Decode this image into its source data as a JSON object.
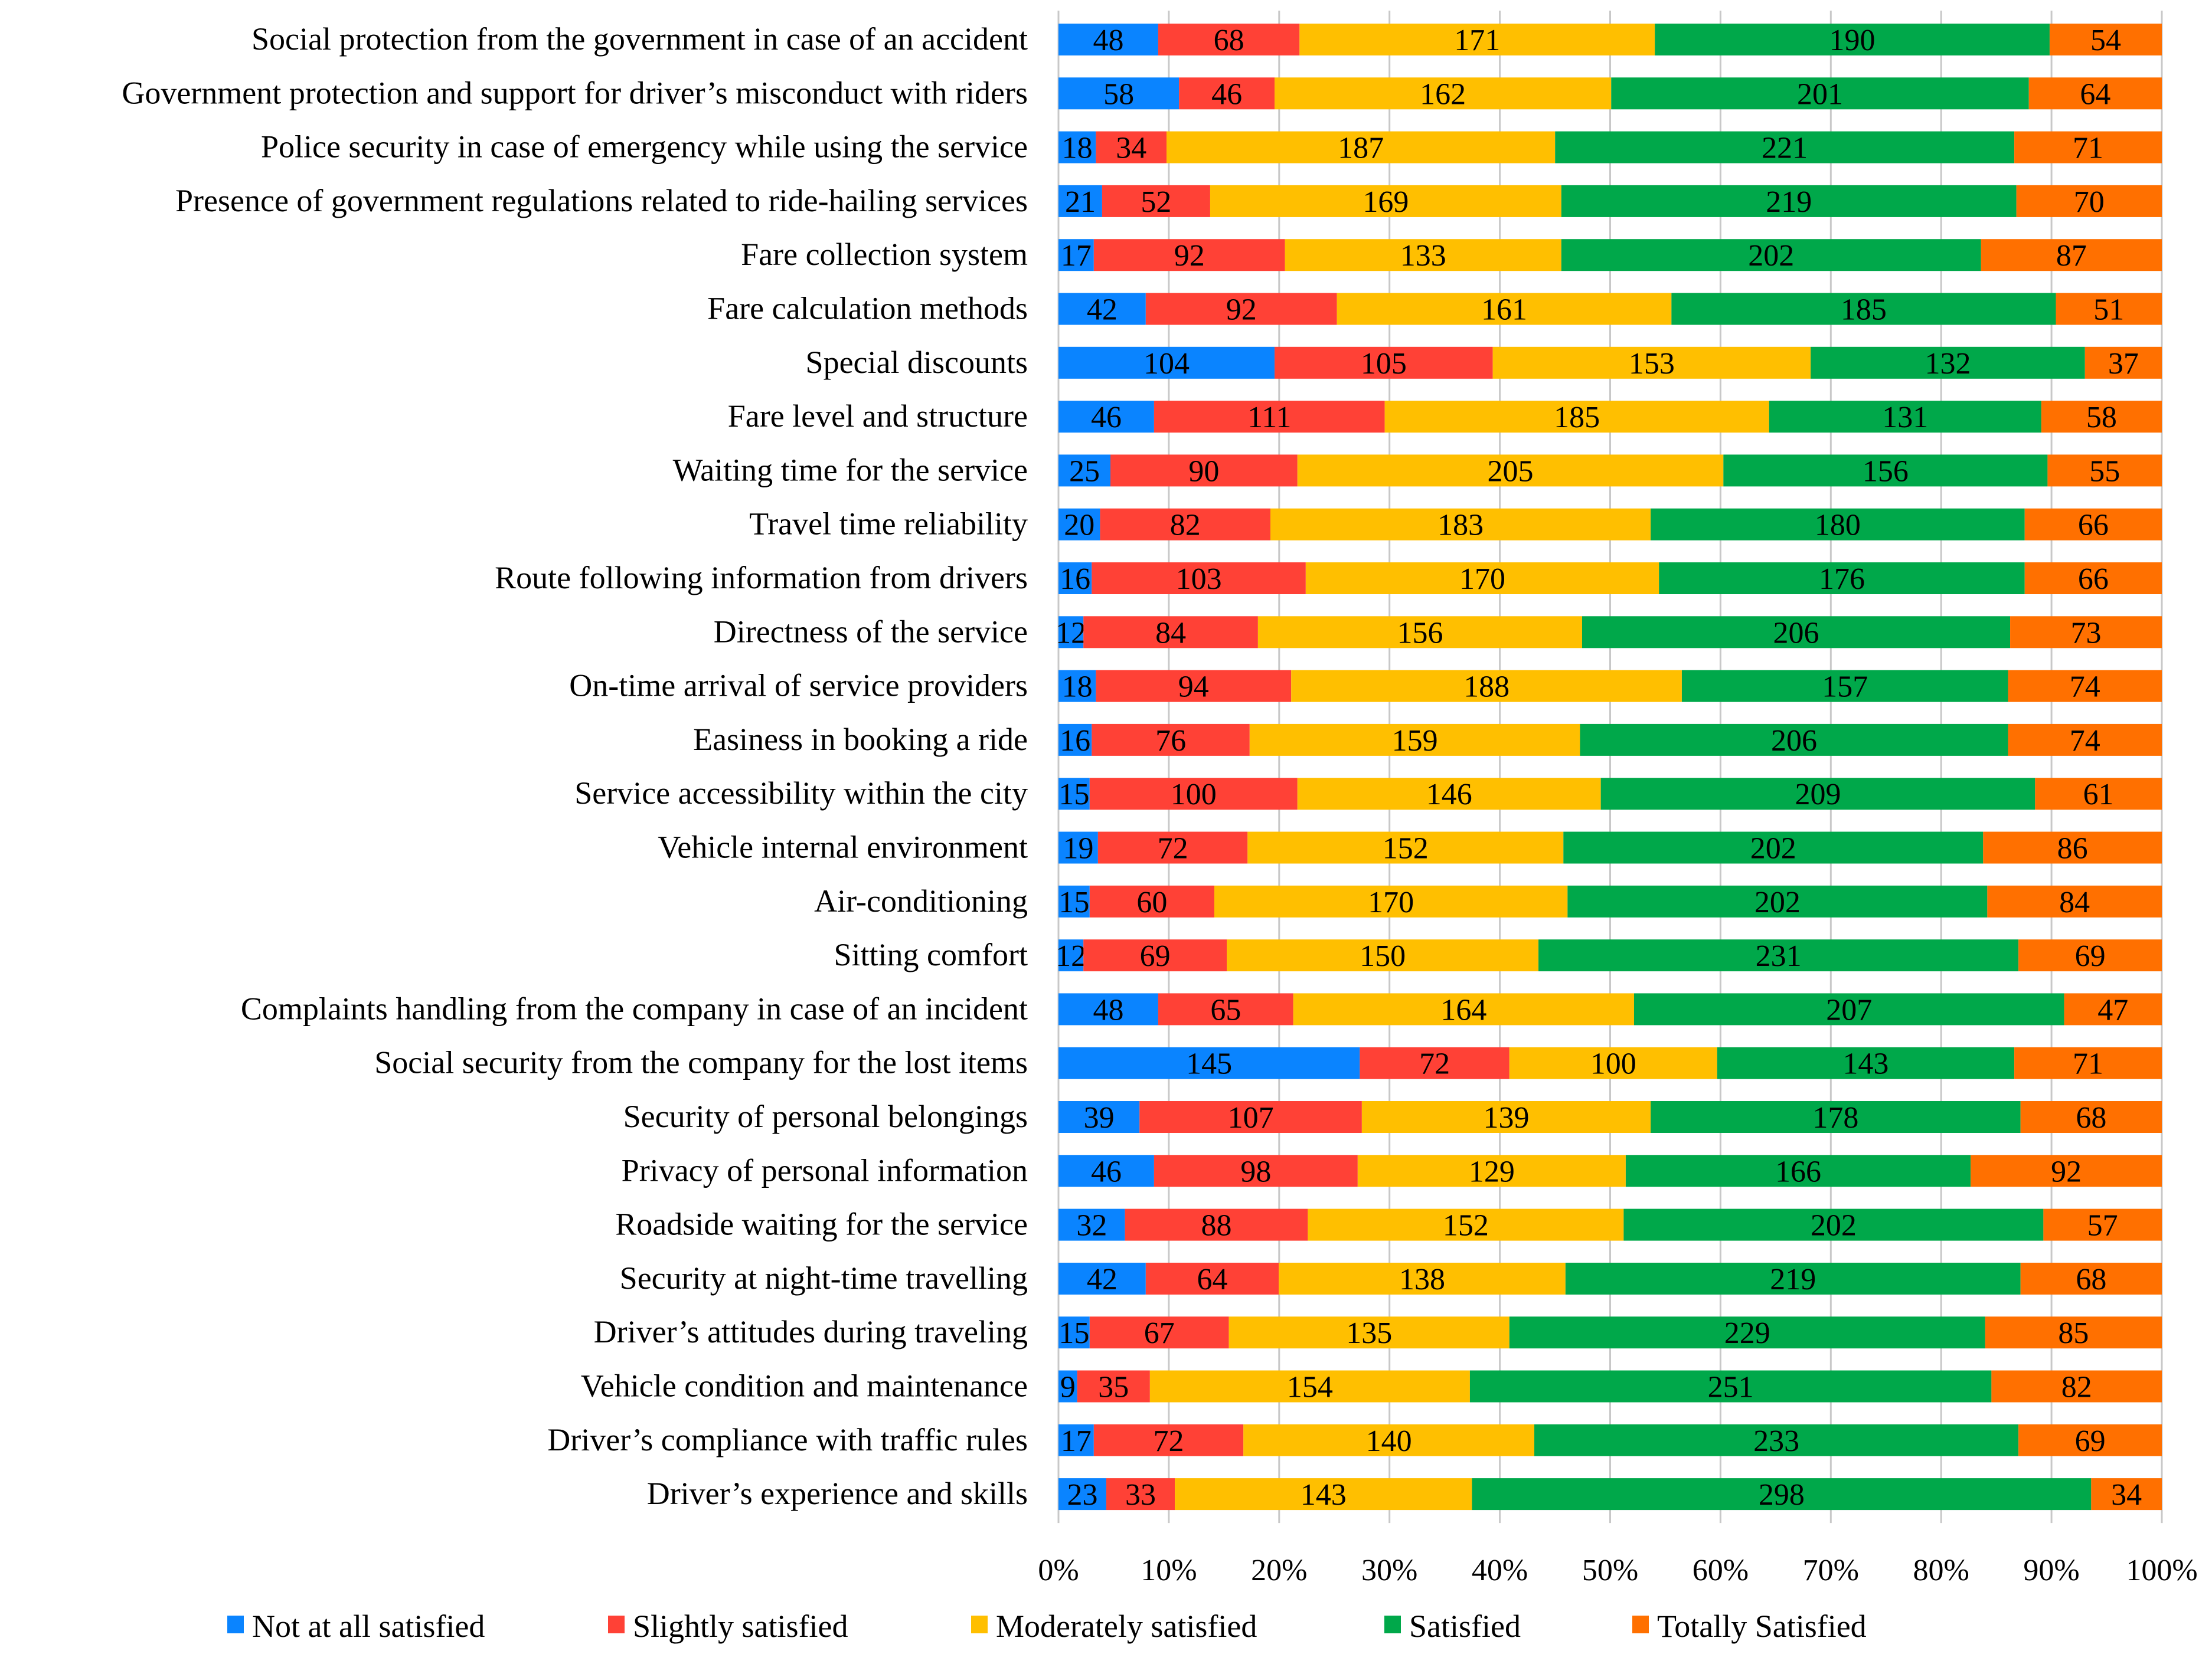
{
  "chart_data": {
    "type": "bar",
    "orientation": "horizontal",
    "stacked": "percent",
    "title": "",
    "xlabel": "",
    "ylabel": "",
    "xlim": [
      0,
      100
    ],
    "x_ticks": [
      "0%",
      "10%",
      "20%",
      "30%",
      "40%",
      "50%",
      "60%",
      "70%",
      "80%",
      "90%",
      "100%"
    ],
    "grid": true,
    "legend_position": "bottom",
    "categories": [
      "Social protection from the government in case of an accident",
      "Government protection and support for driver’s misconduct with riders",
      "Police security in case of emergency while using the service",
      "Presence of government regulations related to ride-hailing services",
      "Fare collection system",
      "Fare calculation methods",
      "Special discounts",
      "Fare level and structure",
      "Waiting time for the service",
      "Travel time reliability",
      "Route following information from drivers",
      "Directness of the service",
      "On-time arrival of service providers",
      "Easiness in booking a ride",
      "Service accessibility within the city",
      "Vehicle internal environment",
      "Air-conditioning",
      "Sitting comfort",
      "Complaints handling from the company in case of an incident",
      "Social security from the company for the lost items",
      "Security of personal belongings",
      "Privacy of personal information",
      "Roadside waiting for the service",
      "Security at night-time travelling",
      "Driver’s attitudes during traveling",
      "Vehicle condition and maintenance",
      "Driver’s compliance with traffic rules",
      "Driver’s experience and skills"
    ],
    "series": [
      {
        "name": "Not at all satisfied",
        "color": "#0a84ff",
        "values": [
          48,
          58,
          18,
          21,
          17,
          42,
          104,
          46,
          25,
          20,
          16,
          12,
          18,
          16,
          15,
          19,
          15,
          12,
          48,
          145,
          39,
          46,
          32,
          42,
          15,
          9,
          17,
          23
        ]
      },
      {
        "name": "Slightly satisfied",
        "color": "#ff4136",
        "values": [
          68,
          46,
          34,
          52,
          92,
          92,
          105,
          111,
          90,
          82,
          103,
          84,
          94,
          76,
          100,
          72,
          60,
          69,
          65,
          72,
          107,
          98,
          88,
          64,
          67,
          35,
          72,
          33
        ]
      },
      {
        "name": "Moderately satisfied",
        "color": "#ffbf00",
        "values": [
          171,
          162,
          187,
          169,
          133,
          161,
          153,
          185,
          205,
          183,
          170,
          156,
          188,
          159,
          146,
          152,
          170,
          150,
          164,
          100,
          139,
          129,
          152,
          138,
          135,
          154,
          140,
          143
        ]
      },
      {
        "name": "Satisfied",
        "color": "#00a84a",
        "values": [
          190,
          201,
          221,
          219,
          202,
          185,
          132,
          131,
          156,
          180,
          176,
          206,
          157,
          206,
          209,
          202,
          202,
          231,
          207,
          143,
          178,
          166,
          202,
          219,
          229,
          251,
          233,
          298
        ]
      },
      {
        "name": "Totally Satisfied",
        "color": "#ff7000",
        "values": [
          54,
          64,
          71,
          70,
          87,
          51,
          37,
          58,
          55,
          66,
          66,
          73,
          74,
          74,
          61,
          86,
          84,
          69,
          47,
          71,
          68,
          92,
          57,
          68,
          85,
          82,
          69,
          34
        ]
      }
    ]
  }
}
